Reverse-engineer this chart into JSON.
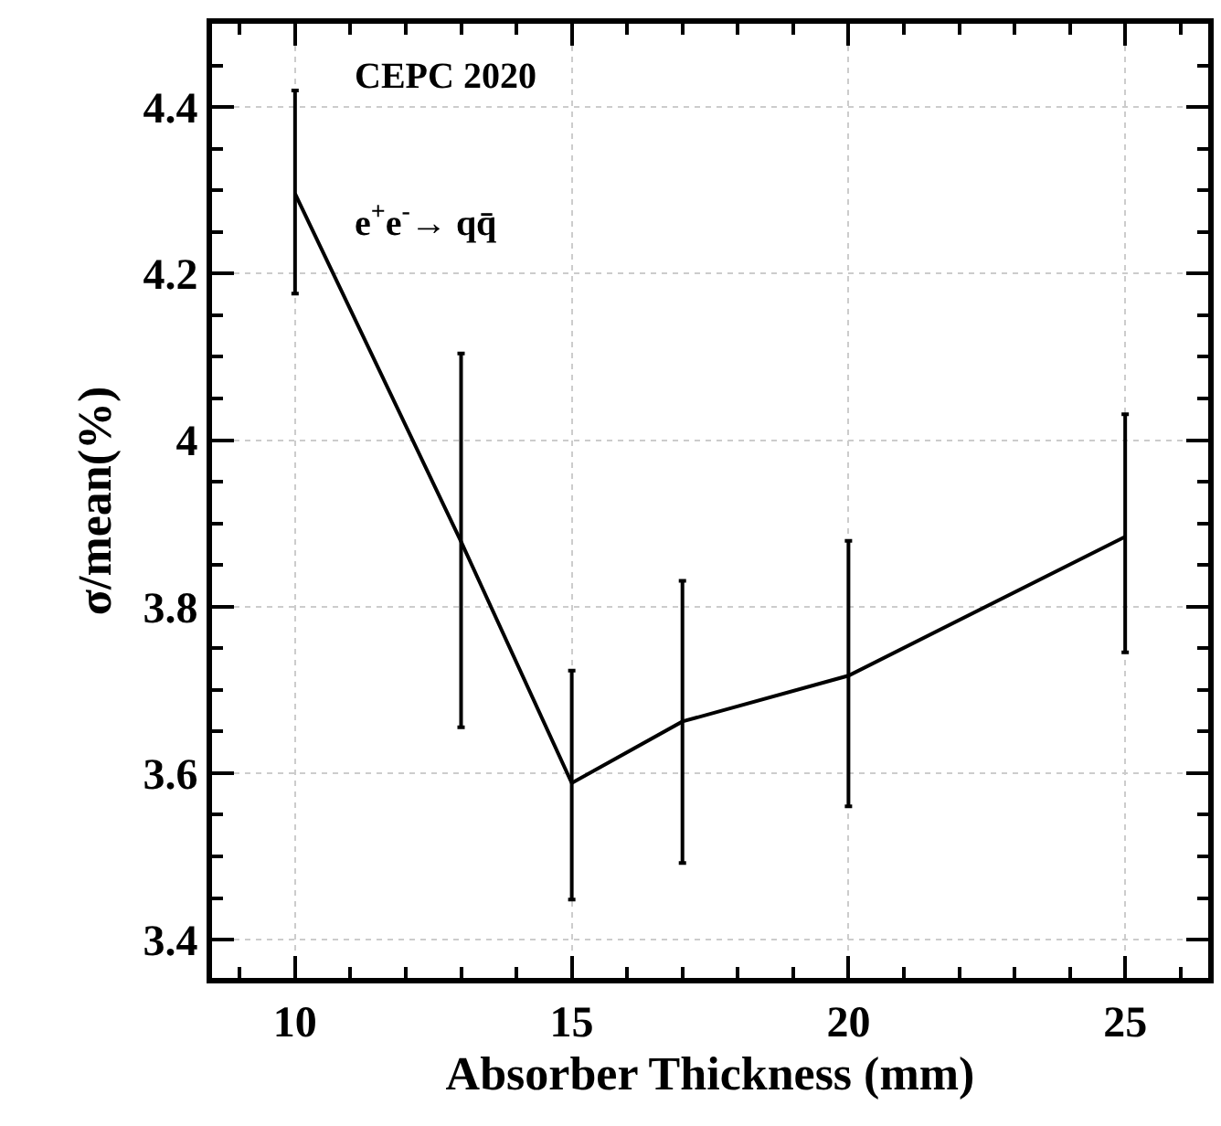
{
  "chart_data": {
    "type": "line",
    "xlabel": "Absorber Thickness (mm)",
    "ylabel": "σ/mean(%)",
    "x": [
      10,
      13,
      15,
      17,
      20,
      25
    ],
    "series": [
      {
        "color": "#000000",
        "values": [
          4.296,
          3.878,
          3.588,
          3.662,
          3.717,
          3.884
        ],
        "errors": [
          [
            4.176,
            4.42
          ],
          [
            3.655,
            4.104
          ],
          [
            3.448,
            3.723
          ],
          [
            3.492,
            3.831
          ],
          [
            3.56,
            3.879
          ],
          [
            3.745,
            4.031
          ]
        ]
      }
    ],
    "xlim": [
      8.5,
      26.5
    ],
    "xticks": [
      10,
      15,
      20,
      25
    ],
    "ylim": [
      3.354,
      4.5
    ],
    "yticks": [
      3.4,
      3.6,
      3.8,
      {
        "value": 4,
        "label": "4"
      },
      4.2,
      4.4
    ],
    "grid": true,
    "marker": "none",
    "line_style": "solid",
    "annotations": [
      "CEPC 2020",
      "e$^{+}$e$^{-}$→ qq̄"
    ]
  }
}
